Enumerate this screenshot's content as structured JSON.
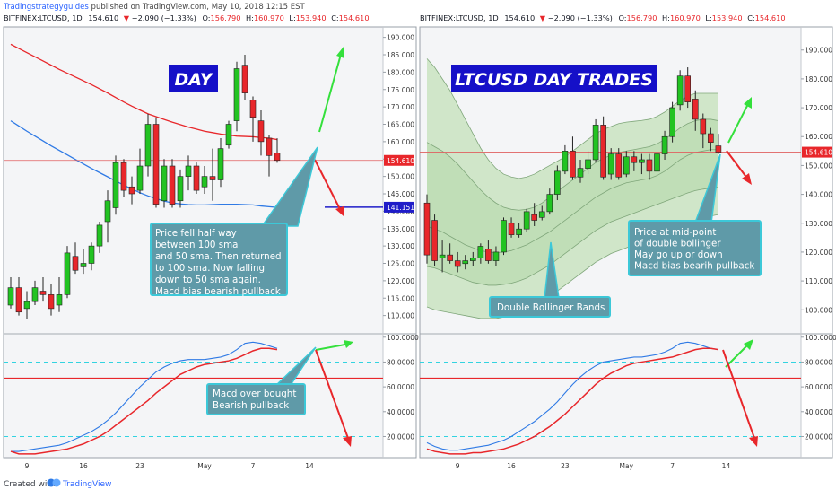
{
  "header": {
    "author": "Tradingstrategyguides",
    "meta": " published on TradingView.com, May 10, 2018 12:15 EST"
  },
  "footer": {
    "created_with": "Created with",
    "brand": "TradingView"
  },
  "colors": {
    "up": "#22c322",
    "down": "#e8272b",
    "sma50": "#e8272b",
    "sma100": "#2f7ae5",
    "macd": "#e8272b",
    "signal": "#2f7ae5",
    "bb_fill": "#c9e3c1",
    "price_line": "#e05f5f",
    "dash_line": "#32d3e0",
    "note_bg": "#5f9aa8",
    "note_border": "#3cc8d8",
    "title_bg": "#1510c8",
    "title_text": "#ffffff",
    "arrow_up": "#34e03c",
    "arrow_down": "#e8272b",
    "marker_line": "#1f1cc8"
  },
  "chart_data": [
    {
      "type": "candlestick",
      "panel": "left",
      "legend": {
        "symbol": "BITFINEX:LTCUSD, 1D",
        "last": "154.610",
        "change": "−2.090 (−1.33%)",
        "o_label": "O:",
        "o": "156.790",
        "h_label": "H:",
        "h": "160.970",
        "l_label": "L:",
        "l": "153.940",
        "c_label": "C:",
        "c": "154.610"
      },
      "title": "DAY",
      "y_range": [
        105,
        193
      ],
      "y_ticks": [
        "110.000",
        "115.000",
        "120.000",
        "125.000",
        "130.000",
        "135.000",
        "140.000",
        "145.000",
        "150.000",
        "155.000",
        "160.000",
        "165.000",
        "170.000",
        "175.000",
        "180.000",
        "185.000",
        "190.000"
      ],
      "price_badge": "154.610",
      "price_badge_value": 154.61,
      "level_badge": "141.151",
      "level_value": 141.151,
      "x_ticks": [
        "9",
        "16",
        "23",
        "May",
        "7",
        "14"
      ],
      "x_tick_index": [
        2,
        9,
        16,
        24,
        30,
        37
      ],
      "candles": [
        {
          "o": 113,
          "h": 121,
          "l": 112,
          "c": 118
        },
        {
          "o": 118,
          "h": 121,
          "l": 110,
          "c": 111
        },
        {
          "o": 112,
          "h": 117,
          "l": 109,
          "c": 114
        },
        {
          "o": 114,
          "h": 120,
          "l": 113,
          "c": 118
        },
        {
          "o": 117,
          "h": 121,
          "l": 114,
          "c": 116
        },
        {
          "o": 116,
          "h": 119,
          "l": 110,
          "c": 112
        },
        {
          "o": 113,
          "h": 121,
          "l": 111,
          "c": 116
        },
        {
          "o": 116,
          "h": 130,
          "l": 115,
          "c": 128
        },
        {
          "o": 127,
          "h": 131,
          "l": 122,
          "c": 123
        },
        {
          "o": 124,
          "h": 129,
          "l": 122,
          "c": 125
        },
        {
          "o": 125,
          "h": 131,
          "l": 123,
          "c": 130
        },
        {
          "o": 130,
          "h": 137,
          "l": 128,
          "c": 136
        },
        {
          "o": 137,
          "h": 146,
          "l": 131,
          "c": 143
        },
        {
          "o": 141,
          "h": 156,
          "l": 139,
          "c": 154
        },
        {
          "o": 154,
          "h": 155,
          "l": 144,
          "c": 146
        },
        {
          "o": 147,
          "h": 150,
          "l": 142,
          "c": 145
        },
        {
          "o": 146,
          "h": 158,
          "l": 145,
          "c": 153
        },
        {
          "o": 153,
          "h": 168,
          "l": 150,
          "c": 165
        },
        {
          "o": 165,
          "h": 167,
          "l": 141,
          "c": 142
        },
        {
          "o": 143,
          "h": 155,
          "l": 141,
          "c": 153
        },
        {
          "o": 153,
          "h": 155,
          "l": 141,
          "c": 142
        },
        {
          "o": 143,
          "h": 152,
          "l": 141,
          "c": 150
        },
        {
          "o": 150,
          "h": 156,
          "l": 146,
          "c": 153
        },
        {
          "o": 153,
          "h": 154,
          "l": 145,
          "c": 146
        },
        {
          "o": 147,
          "h": 153,
          "l": 145,
          "c": 150
        },
        {
          "o": 150,
          "h": 158,
          "l": 143,
          "c": 149
        },
        {
          "o": 149,
          "h": 161,
          "l": 147,
          "c": 158
        },
        {
          "o": 159,
          "h": 166,
          "l": 158,
          "c": 165
        },
        {
          "o": 166,
          "h": 183,
          "l": 163,
          "c": 181
        },
        {
          "o": 182,
          "h": 185,
          "l": 172,
          "c": 174
        },
        {
          "o": 172,
          "h": 173,
          "l": 160,
          "c": 167
        },
        {
          "o": 166,
          "h": 169,
          "l": 156,
          "c": 160
        },
        {
          "o": 161,
          "h": 162,
          "l": 150,
          "c": 156
        },
        {
          "o": 156.79,
          "h": 160.97,
          "l": 153.94,
          "c": 154.61
        }
      ],
      "sma50": [
        188,
        186.8,
        185.6,
        184.4,
        183.2,
        182,
        180.8,
        179.7,
        178.6,
        177.5,
        176.4,
        175.2,
        174,
        172.7,
        171.4,
        170.2,
        169.1,
        168,
        167.2,
        166.4,
        165.6,
        164.9,
        164.2,
        163.6,
        163,
        162.6,
        162.2,
        161.9,
        161.6,
        161.5,
        161.4,
        161.2,
        161,
        160.6
      ],
      "sma100": [
        166,
        164.5,
        163,
        161.6,
        160.2,
        158.8,
        157.5,
        156.2,
        154.9,
        153.6,
        152.3,
        151.1,
        149.9,
        148.7,
        147.5,
        146.4,
        145.3,
        144.4,
        143.6,
        142.9,
        142.4,
        142.1,
        141.9,
        141.8,
        141.8,
        141.9,
        142,
        142,
        142,
        141.9,
        141.8,
        141.5,
        141.3,
        141.1
      ],
      "macd_panel": {
        "y_range": [
          3,
          102
        ],
        "y_ticks": [
          "20.0000",
          "40.0000",
          "60.0000",
          "80.0000",
          "100.0000"
        ],
        "upper_band": 80,
        "lower_band": 20,
        "mid_line": 67,
        "macd": [
          8,
          6,
          6,
          6,
          7,
          8,
          9,
          10,
          12,
          14,
          17,
          20,
          24,
          29,
          34,
          39,
          44,
          49,
          55,
          60,
          65,
          70,
          73,
          76,
          78,
          79,
          80,
          81,
          83,
          86,
          89,
          91,
          91,
          90
        ],
        "signal": [
          8,
          8,
          9,
          10,
          11,
          12,
          13,
          15,
          18,
          21,
          24,
          28,
          33,
          39,
          46,
          53,
          60,
          66,
          72,
          76,
          79,
          81,
          82,
          82,
          82,
          83,
          84,
          86,
          90,
          95,
          96,
          95,
          93,
          91
        ]
      },
      "annotations": [
        {
          "id": "note-1",
          "text": [
            "Price fell half way",
            "between 100 sma",
            "and 50 sma. Then returned",
            "to 100 sma. Now falling",
            "down to 50 sma again.",
            "Macd bias bearish pullback"
          ]
        },
        {
          "id": "note-2",
          "text": [
            "Macd over bought",
            "Bearish pullback"
          ]
        }
      ]
    },
    {
      "type": "candlestick",
      "panel": "right",
      "legend": {
        "symbol": "BITFINEX:LTCUSD, 1D",
        "last": "154.610",
        "change": "−2.090 (−1.33%)",
        "o_label": "O:",
        "o": "156.790",
        "h_label": "H:",
        "h": "160.970",
        "l_label": "L:",
        "l": "153.940",
        "c_label": "C:",
        "c": "154.610"
      },
      "title": "LTCUSD DAY TRADES",
      "y_range": [
        92,
        198
      ],
      "y_ticks": [
        "100.000",
        "110.000",
        "120.000",
        "130.000",
        "140.000",
        "150.000",
        "160.000",
        "170.000",
        "180.000",
        "190.000"
      ],
      "price_badge": "154.610",
      "price_badge_value": 154.61,
      "x_ticks": [
        "9",
        "16",
        "23",
        "May",
        "7",
        "14"
      ],
      "x_tick_index": [
        4,
        11,
        18,
        26,
        32,
        39
      ],
      "candles": [
        {
          "o": 137,
          "h": 140,
          "l": 116,
          "c": 119
        },
        {
          "o": 131,
          "h": 133,
          "l": 115,
          "c": 117
        },
        {
          "o": 118,
          "h": 124,
          "l": 113,
          "c": 119
        },
        {
          "o": 119,
          "h": 123,
          "l": 116,
          "c": 117
        },
        {
          "o": 117,
          "h": 120,
          "l": 113,
          "c": 115
        },
        {
          "o": 116,
          "h": 119,
          "l": 114,
          "c": 117
        },
        {
          "o": 117,
          "h": 120,
          "l": 115,
          "c": 118
        },
        {
          "o": 118,
          "h": 123,
          "l": 116,
          "c": 122
        },
        {
          "o": 121,
          "h": 124,
          "l": 116,
          "c": 117
        },
        {
          "o": 117,
          "h": 122,
          "l": 115,
          "c": 120
        },
        {
          "o": 120,
          "h": 132,
          "l": 119,
          "c": 131
        },
        {
          "o": 130,
          "h": 132,
          "l": 125,
          "c": 126
        },
        {
          "o": 126,
          "h": 130,
          "l": 125,
          "c": 128
        },
        {
          "o": 128,
          "h": 135,
          "l": 127,
          "c": 134
        },
        {
          "o": 133,
          "h": 137,
          "l": 129,
          "c": 131
        },
        {
          "o": 132,
          "h": 136,
          "l": 131,
          "c": 134
        },
        {
          "o": 134,
          "h": 142,
          "l": 133,
          "c": 140
        },
        {
          "o": 140,
          "h": 150,
          "l": 138,
          "c": 148
        },
        {
          "o": 148,
          "h": 157,
          "l": 147,
          "c": 155
        },
        {
          "o": 155,
          "h": 160,
          "l": 145,
          "c": 146
        },
        {
          "o": 146,
          "h": 152,
          "l": 144,
          "c": 149
        },
        {
          "o": 149,
          "h": 155,
          "l": 147,
          "c": 152
        },
        {
          "o": 152,
          "h": 166,
          "l": 151,
          "c": 164
        },
        {
          "o": 164,
          "h": 167,
          "l": 145,
          "c": 146
        },
        {
          "o": 147,
          "h": 156,
          "l": 145,
          "c": 154
        },
        {
          "o": 154,
          "h": 156,
          "l": 145,
          "c": 146
        },
        {
          "o": 147,
          "h": 155,
          "l": 146,
          "c": 153
        },
        {
          "o": 153,
          "h": 155,
          "l": 148,
          "c": 151
        },
        {
          "o": 151,
          "h": 154,
          "l": 147,
          "c": 152
        },
        {
          "o": 152,
          "h": 154,
          "l": 145,
          "c": 148
        },
        {
          "o": 148,
          "h": 157,
          "l": 146,
          "c": 154
        },
        {
          "o": 154,
          "h": 162,
          "l": 152,
          "c": 160
        },
        {
          "o": 160,
          "h": 172,
          "l": 158,
          "c": 170
        },
        {
          "o": 171,
          "h": 183,
          "l": 169,
          "c": 181
        },
        {
          "o": 181,
          "h": 184,
          "l": 170,
          "c": 172
        },
        {
          "o": 173,
          "h": 176,
          "l": 162,
          "c": 166
        },
        {
          "o": 166,
          "h": 168,
          "l": 156,
          "c": 161
        },
        {
          "o": 161,
          "h": 163,
          "l": 155,
          "c": 158
        },
        {
          "o": 156.79,
          "h": 160.97,
          "l": 153.94,
          "c": 154.61
        }
      ],
      "bands": {
        "outer_upper": [
          187,
          184,
          180,
          176,
          171,
          166,
          161,
          156,
          152,
          149,
          147,
          146,
          145.5,
          146,
          147,
          148.5,
          150,
          151.5,
          153,
          155,
          157,
          159,
          161,
          162.5,
          163.5,
          164.5,
          165,
          165.3,
          165.6,
          166,
          167,
          168.5,
          170.5,
          172.5,
          174,
          175,
          175,
          175,
          175
        ],
        "inner_upper": [
          158,
          156.5,
          155,
          153,
          150.5,
          147.5,
          144.5,
          141.5,
          139,
          137,
          135.5,
          134.8,
          134.5,
          134.8,
          135.5,
          137,
          139,
          141,
          143,
          145,
          147,
          149,
          151,
          152.5,
          153.5,
          154.5,
          155,
          155.5,
          156,
          156.5,
          157.5,
          159,
          161,
          163,
          164.5,
          165.5,
          166,
          166,
          165.5
        ],
        "middle": [
          129,
          128,
          127,
          125.5,
          124,
          122.5,
          121.5,
          120.5,
          120,
          119.8,
          120,
          120.5,
          121.5,
          122.5,
          124,
          125.5,
          127,
          129,
          131,
          133,
          135,
          137,
          139,
          140.5,
          142,
          143,
          144,
          144.5,
          145,
          145.5,
          146.5,
          148,
          150,
          152,
          153.5,
          154.5,
          155,
          155.5,
          155.5
        ],
        "inner_lower": [
          115,
          114.5,
          113.5,
          112.5,
          111.5,
          110.5,
          109.5,
          109,
          108.5,
          108.5,
          108.8,
          109.2,
          110,
          111,
          112.5,
          114,
          115.5,
          117.5,
          119.5,
          121.5,
          123.5,
          125.5,
          127.5,
          129,
          130.5,
          131.5,
          132.5,
          133.5,
          134.5,
          135.5,
          136.5,
          137.5,
          138.5,
          139.5,
          140.5,
          141.3,
          141.8,
          142.2,
          142.5
        ],
        "outer_lower": [
          101,
          100,
          99.5,
          99,
          98.5,
          98,
          97.5,
          97,
          97,
          97,
          97.5,
          98,
          99,
          100,
          101.5,
          103,
          104.5,
          106.5,
          108.5,
          110.5,
          112.5,
          114.5,
          116.5,
          118,
          119.5,
          120.5,
          121.5,
          122.5,
          123.5,
          124.5,
          125.5,
          126.5,
          127.5,
          128.5,
          129.5,
          130.5,
          131.5,
          132.5,
          133
        ]
      },
      "macd_panel": {
        "y_range": [
          3,
          102
        ],
        "y_ticks": [
          "20.0000",
          "40.0000",
          "60.0000",
          "80.0000",
          "100.0000"
        ],
        "upper_band": 80,
        "lower_band": 20,
        "mid_line": 67,
        "macd": [
          10,
          8,
          7,
          6,
          6,
          6,
          7,
          7,
          8,
          9,
          10,
          12,
          14,
          17,
          20,
          24,
          28,
          33,
          38,
          44,
          50,
          56,
          62,
          67,
          71,
          74,
          77,
          79,
          80,
          81,
          82,
          83,
          84,
          86,
          88,
          90,
          91,
          91,
          90
        ],
        "signal": [
          15,
          12,
          10,
          9,
          9,
          10,
          11,
          12,
          13,
          15,
          17,
          20,
          24,
          28,
          32,
          37,
          42,
          48,
          55,
          62,
          68,
          73,
          77,
          80,
          81,
          82,
          83,
          84,
          84,
          85,
          86,
          88,
          91,
          95,
          96,
          95,
          93,
          91,
          90
        ]
      },
      "annotations": [
        {
          "id": "note-3",
          "text": [
            "Double Bollinger Bands"
          ]
        },
        {
          "id": "note-4",
          "text": [
            "Price at mid-point",
            "of double bollinger",
            "May go up or down",
            "Macd bias bearih pullback"
          ]
        }
      ]
    }
  ]
}
